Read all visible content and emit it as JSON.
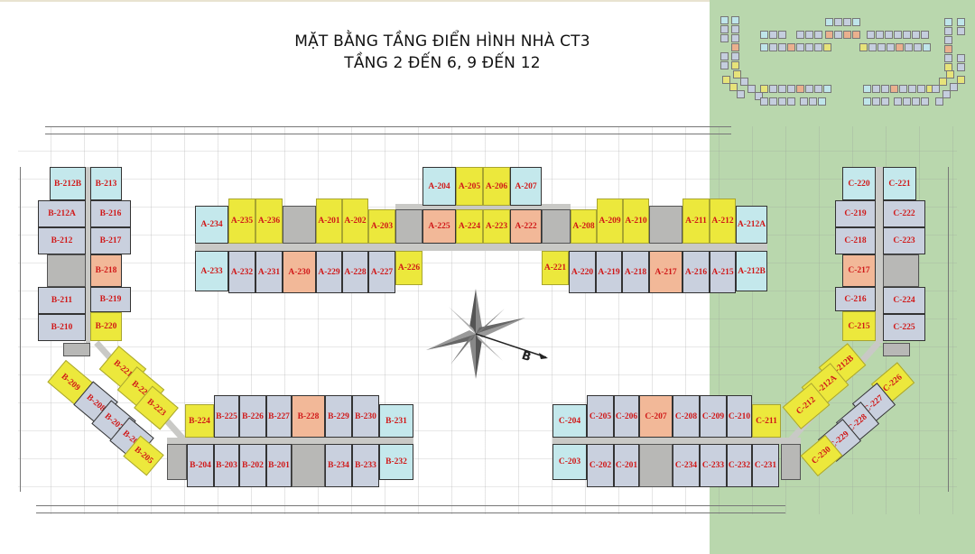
{
  "title": {
    "line1": "MẶT BẰNG TẦNG ĐIỂN HÌNH NHÀ CT3",
    "line2": "TẦNG 2 ĐẾN 6, 9 ĐẾN 12"
  },
  "compass": {
    "label": "B",
    "icon": "compass-rose-icon"
  },
  "colors": {
    "yellow": "#ece83c",
    "teal": "#c4e8ec",
    "blue": "#c9d0de",
    "orange": "#f2b898",
    "label": "#d01818",
    "background_right": "#b9d7ad"
  },
  "units": [
    {
      "id": "A-234",
      "type": "teal"
    },
    {
      "id": "A-235",
      "type": "yellow"
    },
    {
      "id": "A-236",
      "type": "yellow"
    },
    {
      "id": "A-201",
      "type": "yellow"
    },
    {
      "id": "A-202",
      "type": "yellow"
    },
    {
      "id": "A-203",
      "type": "yellow"
    },
    {
      "id": "A-204",
      "type": "teal"
    },
    {
      "id": "A-205",
      "type": "yellow"
    },
    {
      "id": "A-206",
      "type": "yellow"
    },
    {
      "id": "A-207",
      "type": "teal"
    },
    {
      "id": "A-225",
      "type": "orange"
    },
    {
      "id": "A-224",
      "type": "yellow"
    },
    {
      "id": "A-223",
      "type": "yellow"
    },
    {
      "id": "A-222",
      "type": "orange"
    },
    {
      "id": "A-208",
      "type": "yellow"
    },
    {
      "id": "A-209",
      "type": "yellow"
    },
    {
      "id": "A-210",
      "type": "yellow"
    },
    {
      "id": "A-211",
      "type": "yellow"
    },
    {
      "id": "A-212",
      "type": "yellow"
    },
    {
      "id": "A-212A",
      "type": "teal"
    },
    {
      "id": "A-233",
      "type": "teal"
    },
    {
      "id": "A-232",
      "type": "blue"
    },
    {
      "id": "A-231",
      "type": "blue"
    },
    {
      "id": "A-230",
      "type": "orange"
    },
    {
      "id": "A-229",
      "type": "blue"
    },
    {
      "id": "A-228",
      "type": "blue"
    },
    {
      "id": "A-227",
      "type": "blue"
    },
    {
      "id": "A-226",
      "type": "yellow"
    },
    {
      "id": "A-221",
      "type": "yellow"
    },
    {
      "id": "A-220",
      "type": "blue"
    },
    {
      "id": "A-219",
      "type": "blue"
    },
    {
      "id": "A-218",
      "type": "blue"
    },
    {
      "id": "A-217",
      "type": "orange"
    },
    {
      "id": "A-216",
      "type": "blue"
    },
    {
      "id": "A-215",
      "type": "blue"
    },
    {
      "id": "A-212B",
      "type": "teal"
    },
    {
      "id": "B-212B",
      "type": "teal"
    },
    {
      "id": "B-213",
      "type": "teal"
    },
    {
      "id": "B-212A",
      "type": "blue"
    },
    {
      "id": "B-216",
      "type": "blue"
    },
    {
      "id": "B-212",
      "type": "blue"
    },
    {
      "id": "B-217",
      "type": "blue"
    },
    {
      "id": "B-218",
      "type": "orange"
    },
    {
      "id": "B-211",
      "type": "blue"
    },
    {
      "id": "B-219",
      "type": "blue"
    },
    {
      "id": "B-210",
      "type": "blue"
    },
    {
      "id": "B-220",
      "type": "yellow"
    },
    {
      "id": "B-209",
      "type": "yellow"
    },
    {
      "id": "B-208",
      "type": "blue"
    },
    {
      "id": "B-207",
      "type": "blue"
    },
    {
      "id": "B-206",
      "type": "blue"
    },
    {
      "id": "B-205",
      "type": "yellow"
    },
    {
      "id": "B-221",
      "type": "yellow"
    },
    {
      "id": "B-222",
      "type": "yellow"
    },
    {
      "id": "B-223",
      "type": "yellow"
    },
    {
      "id": "B-224",
      "type": "yellow"
    },
    {
      "id": "B-225",
      "type": "blue"
    },
    {
      "id": "B-226",
      "type": "blue"
    },
    {
      "id": "B-227",
      "type": "blue"
    },
    {
      "id": "B-228",
      "type": "orange"
    },
    {
      "id": "B-229",
      "type": "blue"
    },
    {
      "id": "B-230",
      "type": "blue"
    },
    {
      "id": "B-231",
      "type": "teal"
    },
    {
      "id": "B-204",
      "type": "blue"
    },
    {
      "id": "B-203",
      "type": "blue"
    },
    {
      "id": "B-202",
      "type": "blue"
    },
    {
      "id": "B-201",
      "type": "blue"
    },
    {
      "id": "B-234",
      "type": "blue"
    },
    {
      "id": "B-233",
      "type": "blue"
    },
    {
      "id": "B-232",
      "type": "teal"
    },
    {
      "id": "C-204",
      "type": "teal"
    },
    {
      "id": "C-205",
      "type": "blue"
    },
    {
      "id": "C-206",
      "type": "blue"
    },
    {
      "id": "C-207",
      "type": "orange"
    },
    {
      "id": "C-208",
      "type": "blue"
    },
    {
      "id": "C-209",
      "type": "blue"
    },
    {
      "id": "C-210",
      "type": "blue"
    },
    {
      "id": "C-211",
      "type": "yellow"
    },
    {
      "id": "C-203",
      "type": "teal"
    },
    {
      "id": "C-202",
      "type": "blue"
    },
    {
      "id": "C-201",
      "type": "blue"
    },
    {
      "id": "C-234",
      "type": "blue"
    },
    {
      "id": "C-233",
      "type": "blue"
    },
    {
      "id": "C-232",
      "type": "blue"
    },
    {
      "id": "C-231",
      "type": "blue"
    },
    {
      "id": "C-220",
      "type": "teal"
    },
    {
      "id": "C-221",
      "type": "teal"
    },
    {
      "id": "C-219",
      "type": "blue"
    },
    {
      "id": "C-222",
      "type": "blue"
    },
    {
      "id": "C-218",
      "type": "blue"
    },
    {
      "id": "C-223",
      "type": "blue"
    },
    {
      "id": "C-217",
      "type": "orange"
    },
    {
      "id": "C-216",
      "type": "blue"
    },
    {
      "id": "C-224",
      "type": "blue"
    },
    {
      "id": "C-215",
      "type": "yellow"
    },
    {
      "id": "C-225",
      "type": "blue"
    },
    {
      "id": "C-212B",
      "type": "yellow"
    },
    {
      "id": "C-212A",
      "type": "yellow"
    },
    {
      "id": "C-212",
      "type": "yellow"
    },
    {
      "id": "C-226",
      "type": "yellow"
    },
    {
      "id": "C-227",
      "type": "blue"
    },
    {
      "id": "C-228",
      "type": "blue"
    },
    {
      "id": "C-229",
      "type": "blue"
    },
    {
      "id": "C-230",
      "type": "yellow"
    }
  ]
}
